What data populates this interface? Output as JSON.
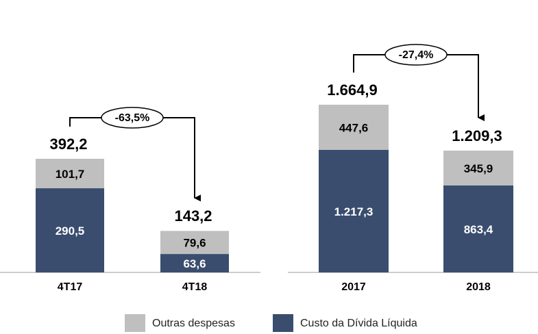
{
  "chart_data": [
    {
      "type": "bar",
      "stacked": true,
      "categories": [
        "4T17",
        "4T18"
      ],
      "series": [
        {
          "name": "Outras despesas",
          "color": "#bfbfbf",
          "values": [
            101.7,
            79.6
          ],
          "value_labels": [
            "101,7",
            "79,6"
          ]
        },
        {
          "name": "Custo da Dívida Líquida",
          "color": "#3a4d6e",
          "values": [
            290.5,
            63.6
          ],
          "value_labels": [
            "290,5",
            "63,6"
          ]
        }
      ],
      "totals": [
        392.2,
        143.2
      ],
      "total_labels": [
        "392,2",
        "143,2"
      ],
      "annotation": "-63,5%"
    },
    {
      "type": "bar",
      "stacked": true,
      "categories": [
        "2017",
        "2018"
      ],
      "series": [
        {
          "name": "Outras despesas",
          "color": "#bfbfbf",
          "values": [
            447.6,
            345.9
          ],
          "value_labels": [
            "447,6",
            "345,9"
          ]
        },
        {
          "name": "Custo da Dívida Líquida",
          "color": "#3a4d6e",
          "values": [
            1217.3,
            863.4
          ],
          "value_labels": [
            "1.217,3",
            "863,4"
          ]
        }
      ],
      "totals": [
        1664.9,
        1209.3
      ],
      "total_labels": [
        "1.664,9",
        "1.209,3"
      ],
      "annotation": "-27,4%"
    }
  ]
}
